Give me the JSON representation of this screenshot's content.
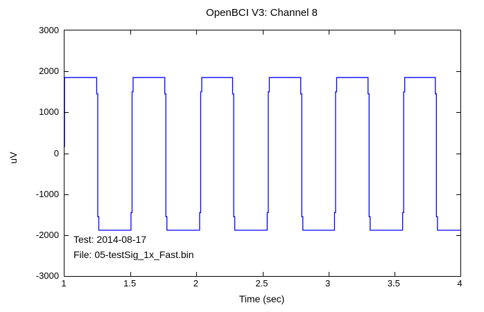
{
  "annotations": {
    "test_line": "Test: 2014-08-17",
    "file_line": "File: 05-testSig_1x_Fast.bin"
  },
  "chart_data": {
    "type": "line",
    "title": "OpenBCI V3: Channel 8",
    "xlabel": "Time (sec)",
    "ylabel": "uV",
    "xlim": [
      1,
      4
    ],
    "ylim": [
      -3000,
      3000
    ],
    "xticks": [
      1,
      1.5,
      2,
      2.5,
      3,
      3.5,
      4
    ],
    "xtick_labels": [
      "1",
      "1.5",
      "2",
      "2.5",
      "3",
      "3.5",
      "4"
    ],
    "yticks": [
      -3000,
      -2000,
      -1000,
      0,
      1000,
      2000,
      3000
    ],
    "ytick_labels": [
      "-3000",
      "-2000",
      "-1000",
      "0",
      "1000",
      "2000",
      "3000"
    ],
    "grid": false,
    "legend": null,
    "line_color": "#0000FF",
    "axis_color": "#000000",
    "signal_summary": {
      "waveform": "square",
      "high_uV": 1850,
      "low_uV": -1880,
      "period_sec": 0.51,
      "first_sample_uV": 150
    },
    "series": [
      {
        "name": "Channel 8",
        "points": [
          [
            1.0,
            150
          ],
          [
            1.0,
            1850
          ],
          [
            1.244,
            1850
          ],
          [
            1.244,
            1450
          ],
          [
            1.252,
            1450
          ],
          [
            1.252,
            -1550
          ],
          [
            1.26,
            -1550
          ],
          [
            1.26,
            -1880
          ],
          [
            1.504,
            -1880
          ],
          [
            1.504,
            -1450
          ],
          [
            1.512,
            -1450
          ],
          [
            1.512,
            1500
          ],
          [
            1.52,
            1500
          ],
          [
            1.52,
            1850
          ],
          [
            1.76,
            1850
          ],
          [
            1.76,
            1450
          ],
          [
            1.768,
            1450
          ],
          [
            1.768,
            -1550
          ],
          [
            1.776,
            -1550
          ],
          [
            1.776,
            -1880
          ],
          [
            2.024,
            -1880
          ],
          [
            2.024,
            -1450
          ],
          [
            2.032,
            -1450
          ],
          [
            2.032,
            1500
          ],
          [
            2.04,
            1500
          ],
          [
            2.04,
            1850
          ],
          [
            2.274,
            1850
          ],
          [
            2.274,
            1450
          ],
          [
            2.282,
            1450
          ],
          [
            2.282,
            -1550
          ],
          [
            2.29,
            -1550
          ],
          [
            2.29,
            -1880
          ],
          [
            2.536,
            -1880
          ],
          [
            2.536,
            -1450
          ],
          [
            2.544,
            -1450
          ],
          [
            2.544,
            1500
          ],
          [
            2.552,
            1500
          ],
          [
            2.552,
            1850
          ],
          [
            2.79,
            1850
          ],
          [
            2.79,
            1450
          ],
          [
            2.798,
            1450
          ],
          [
            2.798,
            -1550
          ],
          [
            2.806,
            -1550
          ],
          [
            2.806,
            -1880
          ],
          [
            3.046,
            -1880
          ],
          [
            3.046,
            -1450
          ],
          [
            3.054,
            -1450
          ],
          [
            3.054,
            1500
          ],
          [
            3.062,
            1500
          ],
          [
            3.062,
            1850
          ],
          [
            3.3,
            1850
          ],
          [
            3.3,
            1450
          ],
          [
            3.308,
            1450
          ],
          [
            3.308,
            -1550
          ],
          [
            3.316,
            -1550
          ],
          [
            3.316,
            -1880
          ],
          [
            3.562,
            -1880
          ],
          [
            3.562,
            -1450
          ],
          [
            3.57,
            -1450
          ],
          [
            3.57,
            1500
          ],
          [
            3.578,
            1500
          ],
          [
            3.578,
            1850
          ],
          [
            3.81,
            1850
          ],
          [
            3.81,
            1450
          ],
          [
            3.818,
            1450
          ],
          [
            3.818,
            -1550
          ],
          [
            3.826,
            -1550
          ],
          [
            3.826,
            -1880
          ],
          [
            4.0,
            -1880
          ]
        ]
      }
    ]
  }
}
